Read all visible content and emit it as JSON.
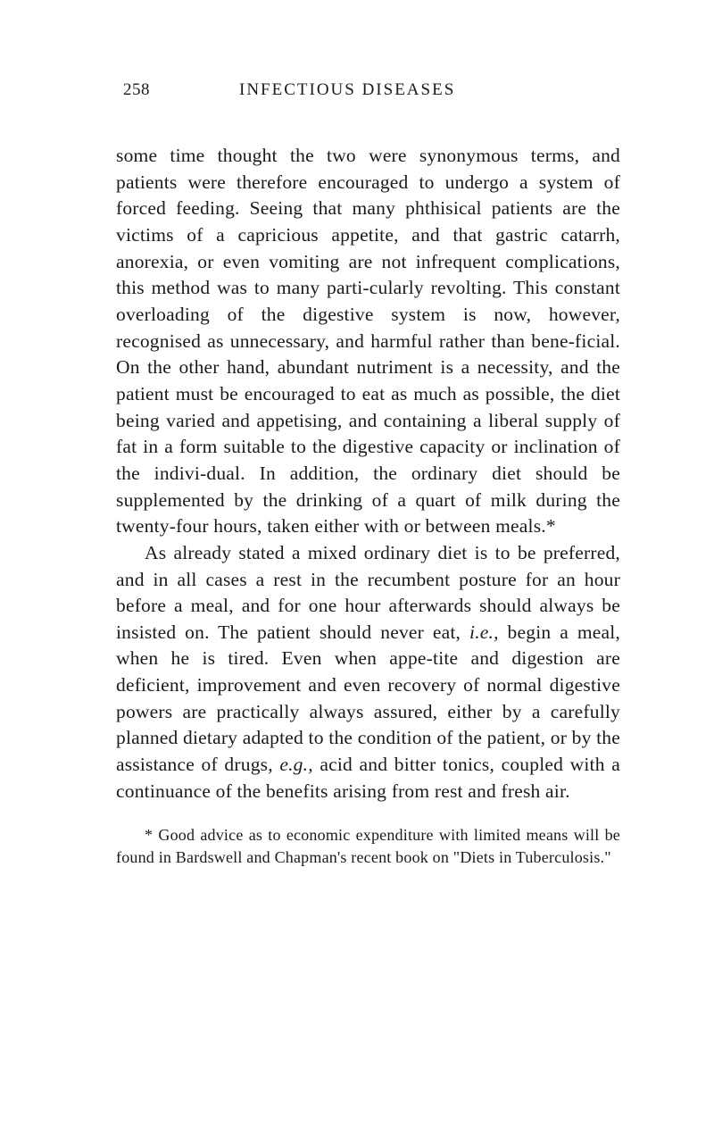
{
  "page": {
    "number": "258",
    "running_title": "INFECTIOUS DISEASES"
  },
  "paragraphs": {
    "p1": "some time thought the two were synonymous terms, and patients were therefore encouraged to undergo a system of forced feeding. Seeing that many phthisical patients are the victims of a capricious appetite, and that gastric catarrh, anorexia, or even vomiting are not infrequent complications, this method was to many parti-cularly revolting. This constant overloading of the digestive system is now, however, recognised as unnecessary, and harmful rather than bene-ficial. On the other hand, abundant nutriment is a necessity, and the patient must be encouraged to eat as much as possible, the diet being varied and appetising, and containing a liberal supply of fat in a form suitable to the digestive capacity or inclination of the indivi-dual. In addition, the ordinary diet should be supplemented by the drinking of a quart of milk during the twenty-four hours, taken either with or between meals.*",
    "p2_part1": "As already stated a mixed ordinary diet is to be preferred, and in all cases a rest in the recumbent posture for an hour before a meal, and for one hour afterwards should always be insisted on. The patient should never eat, ",
    "p2_italic1": "i.e.,",
    "p2_part2": " begin a meal, when he is tired. Even when appe-tite and digestion are deficient, improvement and even recovery of normal digestive powers are practically always assured, either by a carefully planned dietary adapted to the condition of the patient, or by the assistance of drugs, ",
    "p2_italic2": "e.g.,",
    "p2_part3": " acid and bitter tonics, coupled with a continuance of the benefits arising from rest and fresh air."
  },
  "footnote": {
    "text": "* Good advice as to economic expenditure with limited means will be found in Bardswell and Chapman's recent book on \"Diets in Tuberculosis.\""
  },
  "style": {
    "background_color": "#ffffff",
    "text_color": "#1a1a1a",
    "body_font_size": 21.5,
    "footnote_font_size": 18,
    "header_font_size": 19
  }
}
